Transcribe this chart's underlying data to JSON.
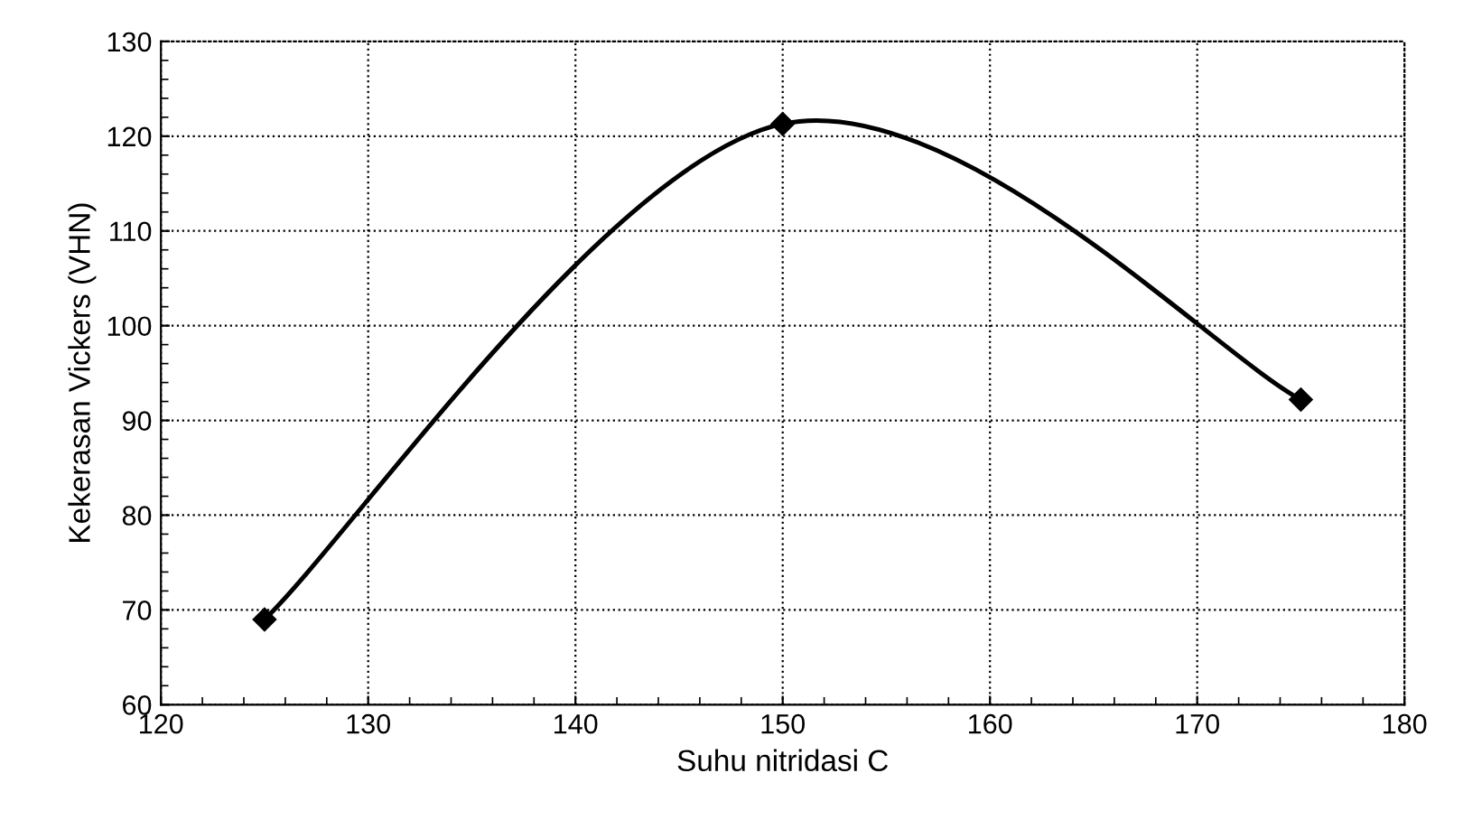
{
  "chart_data": {
    "type": "line",
    "xlabel": "Suhu nitridasi C",
    "ylabel": "Kekerasan Vickers (VHN)",
    "x": [
      125,
      150,
      175
    ],
    "series": [
      {
        "color": "#000000",
        "values": [
          69,
          121.3,
          92.2
        ]
      }
    ],
    "xlim": [
      120,
      180
    ],
    "xticks": [
      120,
      130,
      140,
      150,
      160,
      170,
      180
    ],
    "ylim": [
      60,
      130
    ],
    "yticks": [
      60,
      70,
      80,
      90,
      100,
      110,
      120,
      130
    ],
    "grid": true,
    "marker": "diamond",
    "line_style": "solid",
    "legend": false
  }
}
